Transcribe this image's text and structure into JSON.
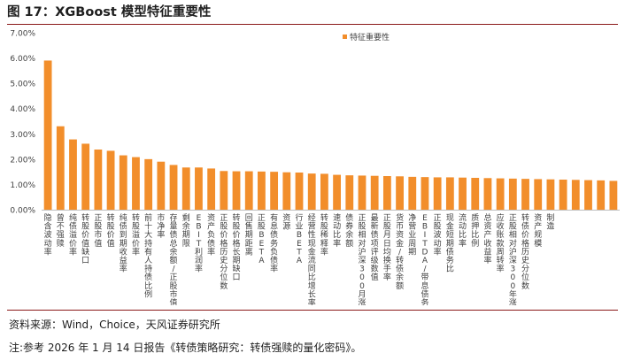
{
  "header": {
    "title": "图 17：XGBoost 模型特征重要性"
  },
  "chart_data": {
    "type": "bar",
    "title": "",
    "xlabel": "",
    "ylabel": "",
    "ylim": [
      0,
      0.07
    ],
    "yticks": [
      "0.00%",
      "1.00%",
      "2.00%",
      "3.00%",
      "4.00%",
      "5.00%",
      "6.00%",
      "7.00%"
    ],
    "grid": false,
    "legend_position": "top-right",
    "bar_color": "#f28e2b",
    "series": [
      {
        "name": "特征重要性",
        "values": [
          0.059,
          0.033,
          0.0278,
          0.0261,
          0.0238,
          0.0233,
          0.0215,
          0.0208,
          0.02,
          0.019,
          0.0177,
          0.0167,
          0.0167,
          0.0163,
          0.0153,
          0.0152,
          0.0152,
          0.0151,
          0.015,
          0.0148,
          0.0147,
          0.0143,
          0.0142,
          0.0138,
          0.0136,
          0.0135,
          0.0134,
          0.0133,
          0.0132,
          0.013,
          0.0129,
          0.0128,
          0.0128,
          0.0127,
          0.0126,
          0.0125,
          0.0124,
          0.0123,
          0.0122,
          0.0121,
          0.012,
          0.0119,
          0.0118,
          0.0117,
          0.0116,
          0.0114
        ]
      }
    ],
    "categories": [
      "隐含波动率",
      "曾不强赎",
      "纯债溢价率",
      "转股价值缺口",
      "正股市值",
      "转股价值",
      "纯债到期收益率",
      "转股溢价率",
      "前十大持有人持债比例",
      "市净率",
      "存量债总余额/正股市值",
      "剩余期限",
      "EBIT利润率",
      "资产负债率",
      "正股价格历史分位数",
      "转股价格长期缺口",
      "回售期距离",
      "正股BETA",
      "有息债务负债率",
      "资源",
      "行业BETA",
      "经营性现金流同比增长率",
      "转股稀释率",
      "速动比率",
      "债券余额",
      "正股相对沪深300月涨跌幅",
      "最新债项评级数值",
      "正股月日均换手率",
      "货币资金/转债余额",
      "净营业周期",
      "EBITDA/带息债务",
      "正股波动率",
      "现金短期债务比",
      "流动比率",
      "质押比例",
      "总资产收益率",
      "应收账款周转率",
      "正股相对沪深300年涨跌幅",
      "转债价格历史分位数",
      "资产规模",
      "制造",
      "",
      "",
      "",
      "",
      ""
    ]
  },
  "footer": {
    "source": "资料来源：Wind，Choice，天风证券研究所",
    "note": "注:参考 2026 年 1 月 14 日报告《转债策略研究：转债强赎的量化密码》。"
  }
}
